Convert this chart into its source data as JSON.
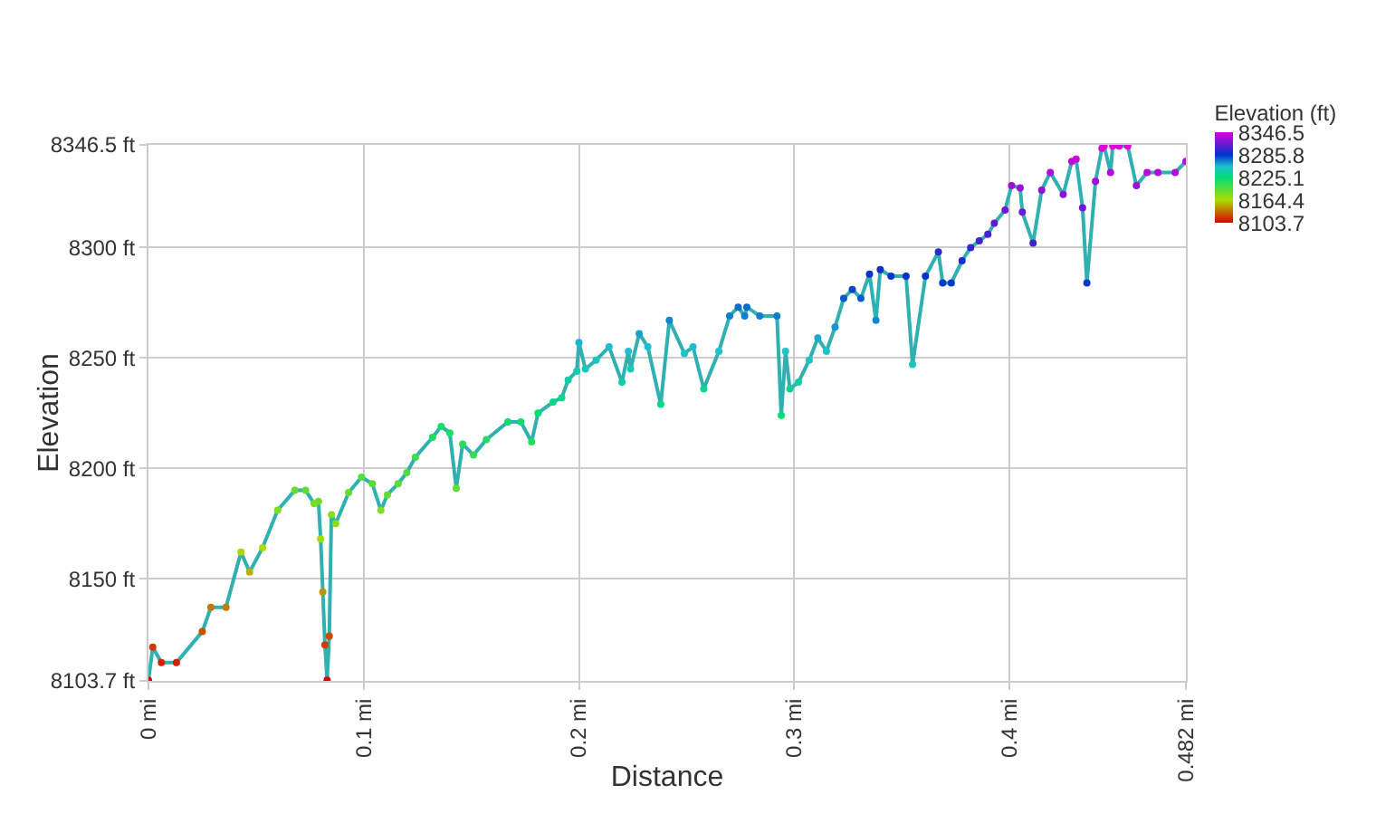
{
  "chart_data": {
    "type": "line",
    "xlabel": "Distance",
    "ylabel": "Elevation",
    "clabel": "Elevation (ft)",
    "x": [
      0,
      0.002,
      0.006,
      0.013,
      0.025,
      0.029,
      0.036,
      0.043,
      0.047,
      0.053,
      0.06,
      0.068,
      0.073,
      0.077,
      0.079,
      0.08,
      0.081,
      0.082,
      0.083,
      0.084,
      0.085,
      0.087,
      0.093,
      0.099,
      0.104,
      0.108,
      0.111,
      0.116,
      0.12,
      0.124,
      0.132,
      0.136,
      0.14,
      0.143,
      0.146,
      0.151,
      0.157,
      0.167,
      0.173,
      0.178,
      0.181,
      0.188,
      0.192,
      0.195,
      0.199,
      0.2,
      0.203,
      0.208,
      0.214,
      0.22,
      0.223,
      0.224,
      0.228,
      0.232,
      0.238,
      0.242,
      0.249,
      0.253,
      0.258,
      0.265,
      0.27,
      0.274,
      0.277,
      0.278,
      0.284,
      0.292,
      0.294,
      0.296,
      0.298,
      0.302,
      0.307,
      0.311,
      0.315,
      0.319,
      0.323,
      0.327,
      0.331,
      0.335,
      0.338,
      0.34,
      0.345,
      0.352,
      0.355,
      0.361,
      0.367,
      0.369,
      0.373,
      0.378,
      0.382,
      0.386,
      0.39,
      0.393,
      0.398,
      0.401,
      0.405,
      0.406,
      0.411,
      0.415,
      0.419,
      0.425,
      0.429,
      0.431,
      0.434,
      0.436,
      0.44,
      0.443,
      0.444,
      0.447,
      0.448,
      0.451,
      0.455,
      0.459,
      0.464,
      0.469,
      0.477,
      0.482
    ],
    "series": [
      {
        "values": [
          8104,
          8119,
          8112,
          8112,
          8126,
          8137,
          8137,
          8162,
          8153,
          8164,
          8181,
          8190,
          8190,
          8184,
          8185,
          8168,
          8144,
          8120,
          8104,
          8124,
          8179,
          8175,
          8189,
          8196,
          8193,
          8181,
          8188,
          8193,
          8198,
          8205,
          8214,
          8219,
          8216,
          8191,
          8211,
          8206,
          8213,
          8221,
          8221,
          8212,
          8225,
          8230,
          8232,
          8240,
          8244,
          8257,
          8245,
          8249,
          8255,
          8239,
          8253,
          8245,
          8261,
          8255,
          8229,
          8267,
          8252,
          8255,
          8236,
          8253,
          8269,
          8273,
          8269,
          8273,
          8269,
          8269,
          8224,
          8253,
          8236,
          8239,
          8249,
          8259,
          8253,
          8264,
          8277,
          8281,
          8277,
          8288,
          8267,
          8290,
          8287,
          8287,
          8247,
          8287,
          8298,
          8284,
          8284,
          8294,
          8300,
          8303,
          8306,
          8311,
          8317,
          8328,
          8327,
          8316,
          8302,
          8326,
          8334,
          8324,
          8339,
          8340,
          8318,
          8284,
          8330,
          8345,
          8346,
          8334,
          8346,
          8346,
          8346,
          8328,
          8334,
          8334,
          8334,
          8339
        ]
      }
    ],
    "xlim": [
      0,
      0.482
    ],
    "xticks": [
      {
        "value": 0,
        "label": "0 mi"
      },
      {
        "value": 0.1,
        "label": "0.1 mi"
      },
      {
        "value": 0.2,
        "label": "0.2 mi"
      },
      {
        "value": 0.3,
        "label": "0.3 mi"
      },
      {
        "value": 0.4,
        "label": "0.4 mi"
      },
      {
        "value": 0.482,
        "label": "0.482 mi"
      }
    ],
    "ylim": [
      8103.7,
      8346.5
    ],
    "yticks": [
      {
        "value": 8103.7,
        "label": "8103.7 ft"
      },
      {
        "value": 8150,
        "label": "8150 ft"
      },
      {
        "value": 8200,
        "label": "8200 ft"
      },
      {
        "value": 8250,
        "label": "8250 ft"
      },
      {
        "value": 8300,
        "label": "8300 ft"
      },
      {
        "value": 8346.5,
        "label": "8346.5 ft"
      }
    ],
    "clim": [
      8103.7,
      8346.5
    ],
    "cticks": [
      8346.5,
      8285.8,
      8225.1,
      8164.4,
      8103.7
    ],
    "grid": true,
    "marker": "circle",
    "line_style": "solid"
  }
}
